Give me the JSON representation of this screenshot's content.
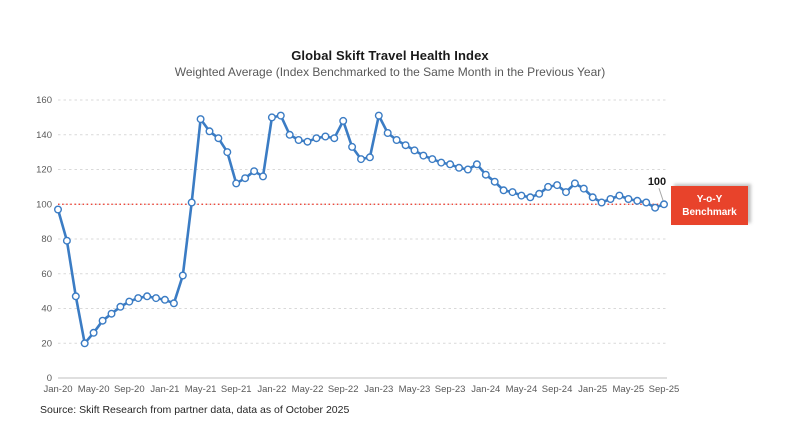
{
  "header": {
    "title": "Global Skift Travel Health Index",
    "subtitle": "Weighted Average (Index Benchmarked to the Same Month in the Previous Year)"
  },
  "annotations": {
    "last_value_label": "100",
    "benchmark_line1": "Y-o-Y",
    "benchmark_line2": "Benchmark"
  },
  "footer": {
    "source": "Source: Skift Research from partner data, data as of October 2025"
  },
  "colors": {
    "series_line": "#3b7cc4",
    "marker_fill": "#ffffff",
    "benchmark_red": "#ed3122",
    "benchmark_box": "#e8432b",
    "gridline": "#d9d9d9",
    "axis_line": "#bfbfbf",
    "tick_text": "#595959",
    "leader_line": "#a6a6a6"
  },
  "chart_data": {
    "type": "line",
    "title": "Global Skift Travel Health Index",
    "subtitle": "Weighted Average (Index Benchmarked to the Same Month in the Previous Year)",
    "xlabel": "",
    "ylabel": "",
    "ylim": [
      0,
      160
    ],
    "ytick_step": 20,
    "xtick_every": 4,
    "grid": "horizontal-dashed",
    "legend": "none",
    "benchmark_value": 100,
    "benchmark_label": "Y-o-Y Benchmark",
    "last_point_label": "100",
    "x": [
      "Jan-20",
      "Feb-20",
      "Mar-20",
      "Apr-20",
      "May-20",
      "Jun-20",
      "Jul-20",
      "Aug-20",
      "Sep-20",
      "Oct-20",
      "Nov-20",
      "Dec-20",
      "Jan-21",
      "Feb-21",
      "Mar-21",
      "Apr-21",
      "May-21",
      "Jun-21",
      "Jul-21",
      "Aug-21",
      "Sep-21",
      "Oct-21",
      "Nov-21",
      "Dec-21",
      "Jan-22",
      "Feb-22",
      "Mar-22",
      "Apr-22",
      "May-22",
      "Jun-22",
      "Jul-22",
      "Aug-22",
      "Sep-22",
      "Oct-22",
      "Nov-22",
      "Dec-22",
      "Jan-23",
      "Feb-23",
      "Mar-23",
      "Apr-23",
      "May-23",
      "Jun-23",
      "Jul-23",
      "Aug-23",
      "Sep-23",
      "Oct-23",
      "Nov-23",
      "Dec-23",
      "Jan-24",
      "Feb-24",
      "Mar-24",
      "Apr-24",
      "May-24",
      "Jun-24",
      "Jul-24",
      "Aug-24",
      "Sep-24",
      "Oct-24",
      "Nov-24",
      "Dec-24",
      "Jan-25",
      "Feb-25",
      "Mar-25",
      "Apr-25",
      "May-25",
      "Jun-25",
      "Jul-25",
      "Aug-25",
      "Sep-25"
    ],
    "values": [
      97,
      79,
      47,
      20,
      26,
      33,
      37,
      41,
      44,
      46,
      47,
      46,
      45,
      43,
      59,
      101,
      149,
      142,
      138,
      130,
      112,
      115,
      119,
      116,
      150,
      151,
      140,
      137,
      136,
      138,
      139,
      138,
      148,
      133,
      126,
      127,
      151,
      141,
      137,
      134,
      131,
      128,
      126,
      124,
      123,
      121,
      120,
      123,
      117,
      113,
      108,
      107,
      105,
      104,
      106,
      110,
      111,
      107,
      112,
      109,
      104,
      101,
      103,
      105,
      103,
      102,
      101,
      98,
      100
    ]
  }
}
